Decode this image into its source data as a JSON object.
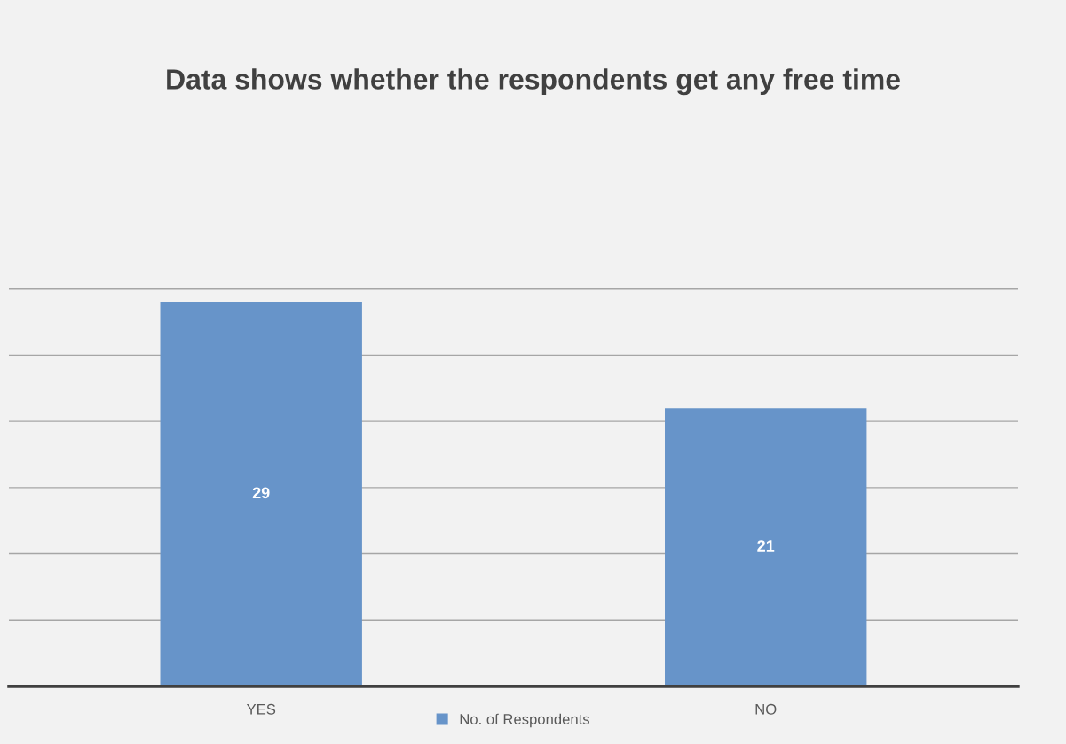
{
  "chart_data": {
    "type": "bar",
    "title": "Data shows whether the respondents get any free time",
    "categories": [
      "YES",
      "NO"
    ],
    "series": [
      {
        "name": "No. of Respondents",
        "color": "#6794c9",
        "values": [
          29,
          21
        ]
      }
    ],
    "ylim": [
      0,
      35
    ],
    "yticks": [
      {
        "value": 0,
        "label": null
      },
      {
        "value": 5,
        "label": null
      },
      {
        "value": 10,
        "label": null
      },
      {
        "value": 15,
        "label": null
      },
      {
        "value": 20,
        "label": null
      },
      {
        "value": 25,
        "label": null
      },
      {
        "value": 30,
        "label": null
      },
      {
        "value": 35,
        "label": null
      }
    ],
    "tick_labels": "x",
    "grid": "y",
    "legend": "bottom",
    "data_labels": true
  }
}
